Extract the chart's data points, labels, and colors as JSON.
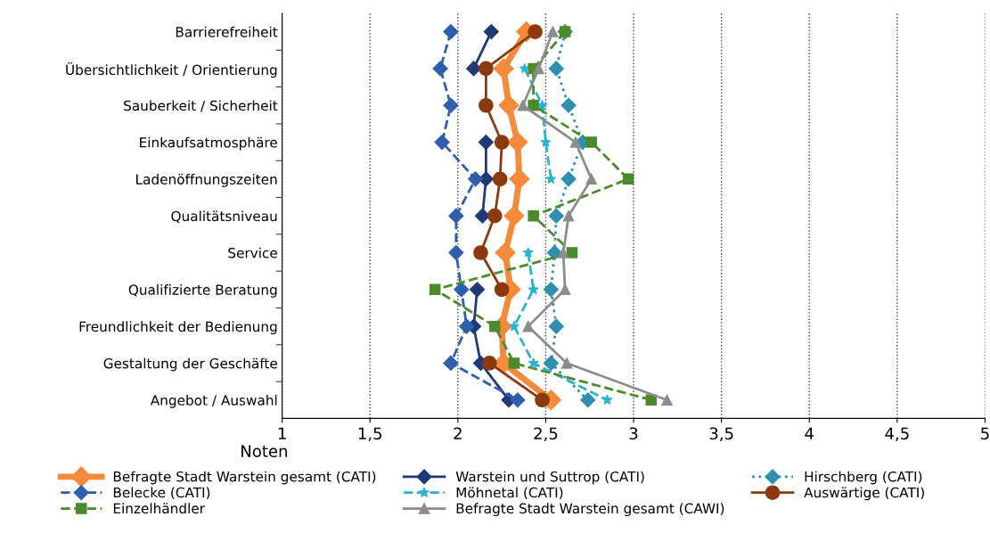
{
  "chart_data": {
    "type": "line",
    "orientation": "horizontal",
    "xlabel": "Noten",
    "categories": [
      "Barrierefreiheit",
      "Übersichtlichkeit / Orientierung",
      "Sauberkeit / Sicherheit",
      "Einkaufsatmosphäre",
      "Ladenöffnungszeiten",
      "Qualitätsniveau",
      "Service",
      "Qualifizierte Beratung",
      "Freundlichkeit der Bedienung",
      "Gestaltung der Geschäfte",
      "Angebot / Auswahl"
    ],
    "xlim": [
      1,
      5
    ],
    "xticks": [
      1,
      {
        "value": 1.5,
        "label": "1,5"
      },
      2,
      {
        "value": 2.5,
        "label": "2,5"
      },
      3,
      {
        "value": 3.5,
        "label": "3,5"
      },
      4,
      {
        "value": 4.5,
        "label": "4,5"
      },
      5
    ],
    "grid": "x",
    "legend": "bottom",
    "series": [
      {
        "name": "Befragte Stadt Warstein gesamt (CATI)",
        "color": "#f58a3a",
        "marker": "diamond",
        "line_style": "solid",
        "values": [
          2.39,
          2.26,
          2.29,
          2.34,
          2.35,
          2.32,
          2.27,
          2.3,
          2.25,
          2.26,
          2.53
        ]
      },
      {
        "name": "Warstein und Suttrop (CATI)",
        "color": "#1f3a78",
        "marker": "diamond",
        "line_style": "solid",
        "values": [
          2.19,
          2.09,
          null,
          2.16,
          2.16,
          2.14,
          null,
          2.11,
          2.09,
          2.13,
          2.29
        ]
      },
      {
        "name": "Hirschberg (CATI)",
        "color": "#2e8fb0",
        "marker": "diamond",
        "line_style": "dotted",
        "values": [
          2.61,
          2.56,
          2.63,
          2.71,
          2.63,
          2.56,
          2.55,
          2.53,
          2.56,
          2.53,
          2.74
        ]
      },
      {
        "name": "Belecke (CATI)",
        "color": "#2e5faf",
        "marker": "diamond",
        "line_style": "dashed",
        "values": [
          1.96,
          1.9,
          1.96,
          1.91,
          2.1,
          1.99,
          1.99,
          2.02,
          2.05,
          1.96,
          2.34
        ]
      },
      {
        "name": "Möhnetal (CATI)",
        "color": "#27b4d0",
        "marker": "star",
        "line_style": "dashed",
        "values": [
          null,
          2.38,
          2.48,
          2.5,
          2.53,
          null,
          2.4,
          2.43,
          2.32,
          2.43,
          2.85
        ]
      },
      {
        "name": "Auswärtige (CATI)",
        "color": "#8b3a0f",
        "marker": "circle",
        "line_style": "solid",
        "values": [
          2.44,
          2.16,
          2.16,
          2.25,
          2.24,
          2.21,
          2.13,
          2.25,
          null,
          2.18,
          2.48
        ]
      },
      {
        "name": "Einzelhändler",
        "color": "#4a8a2a",
        "marker": "square",
        "line_style": "dashed",
        "values": [
          2.61,
          2.43,
          2.43,
          2.76,
          2.97,
          2.43,
          2.65,
          1.87,
          2.21,
          2.32,
          3.1
        ]
      },
      {
        "name": "Befragte Stadt Warstein gesamt (CAWI)",
        "color": "#8c8c8c",
        "marker": "triangle",
        "line_style": "solid",
        "values": [
          2.54,
          2.46,
          2.37,
          2.67,
          2.76,
          2.63,
          2.6,
          2.61,
          2.4,
          2.62,
          3.19
        ]
      }
    ]
  }
}
